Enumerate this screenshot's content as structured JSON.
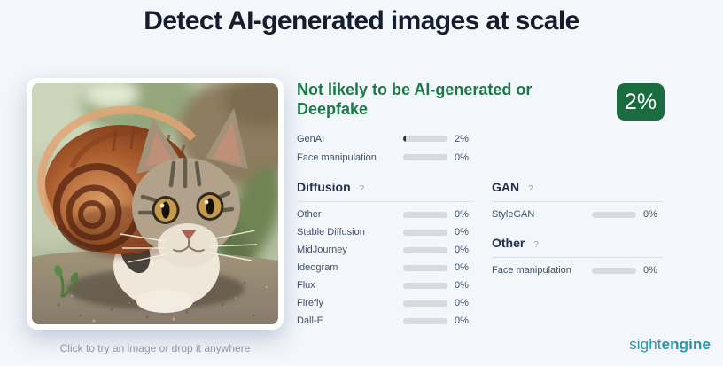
{
  "page": {
    "title": "Detect AI-generated images at scale"
  },
  "uploader": {
    "image_alt": "AI-generated photo of a tabby cat wearing a large snail shell",
    "hint": "Click to try an image or drop it anywhere"
  },
  "result": {
    "verdict": "Not likely to be AI-generated or Deepfake",
    "score": "2%",
    "score_value": 2,
    "colors": {
      "accent_green": "#1a7a45",
      "badge_green": "#186c3e",
      "bar_fill": "#2a3240",
      "bar_track": "#d6dbe3"
    },
    "summary_rows": [
      {
        "label": "GenAI",
        "value": 2,
        "pct": "2%"
      },
      {
        "label": "Face manipulation",
        "value": 0,
        "pct": "0%"
      }
    ],
    "sections": [
      {
        "title": "Diffusion",
        "help": "?",
        "rows": [
          {
            "label": "Other",
            "value": 0,
            "pct": "0%"
          },
          {
            "label": "Stable Diffusion",
            "value": 0,
            "pct": "0%"
          },
          {
            "label": "MidJourney",
            "value": 0,
            "pct": "0%"
          },
          {
            "label": "Ideogram",
            "value": 0,
            "pct": "0%"
          },
          {
            "label": "Flux",
            "value": 0,
            "pct": "0%"
          },
          {
            "label": "Firefly",
            "value": 0,
            "pct": "0%"
          },
          {
            "label": "Dall-E",
            "value": 0,
            "pct": "0%"
          }
        ]
      },
      {
        "title": "GAN",
        "help": "?",
        "rows": [
          {
            "label": "StyleGAN",
            "value": 0,
            "pct": "0%"
          }
        ]
      },
      {
        "title": "Other",
        "help": "?",
        "rows": [
          {
            "label": "Face manipulation",
            "value": 0,
            "pct": "0%"
          }
        ]
      }
    ]
  },
  "footer": {
    "brand_light": "sight",
    "brand_bold": "engine"
  }
}
